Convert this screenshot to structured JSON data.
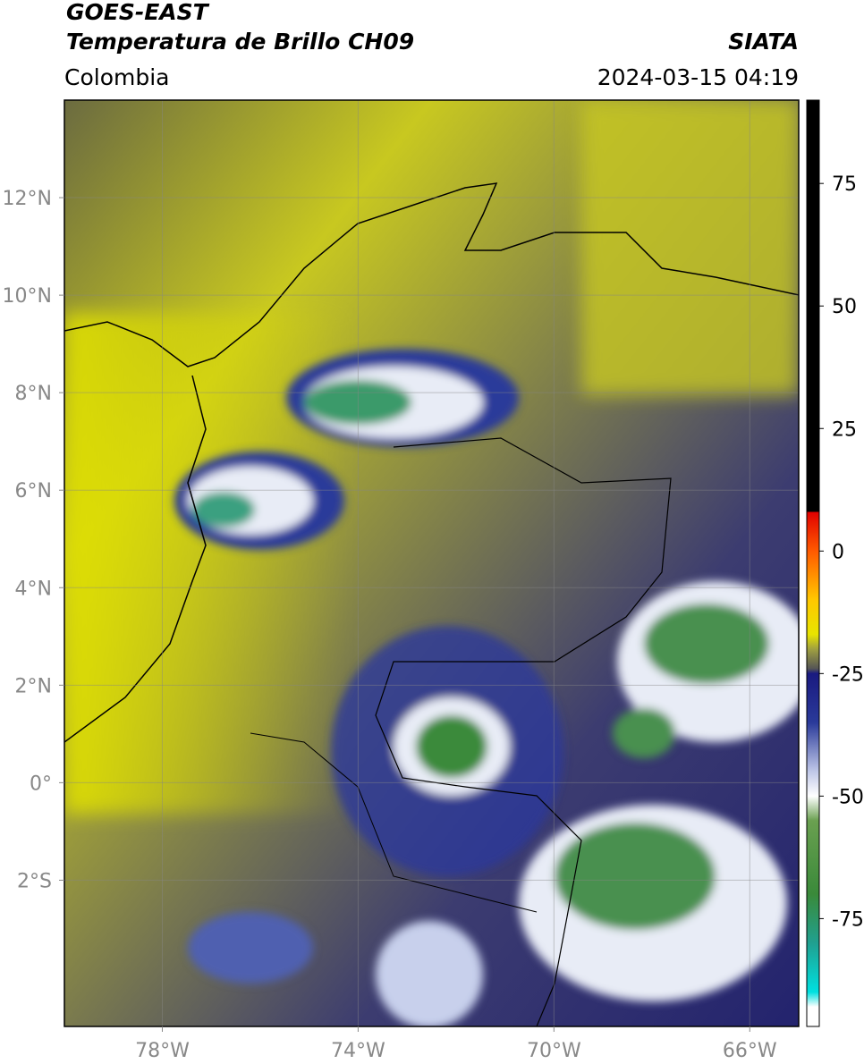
{
  "header": {
    "satellite": "GOES-EAST",
    "product": "Temperatura de Brillo CH09",
    "region": "Colombia",
    "source": "SIATA",
    "datetime": "2024-03-15 04:19"
  },
  "map": {
    "xlim": [
      -80,
      -65
    ],
    "ylim": [
      -5,
      14
    ],
    "xticks": [
      {
        "value": -78,
        "label": "78°W"
      },
      {
        "value": -74,
        "label": "74°W"
      },
      {
        "value": -70,
        "label": "70°W"
      },
      {
        "value": -66,
        "label": "66°W"
      }
    ],
    "yticks": [
      {
        "value": 12,
        "label": "12°N"
      },
      {
        "value": 10,
        "label": "10°N"
      },
      {
        "value": 8,
        "label": "8°N"
      },
      {
        "value": 6,
        "label": "6°N"
      },
      {
        "value": 4,
        "label": "4°N"
      },
      {
        "value": 2,
        "label": "2°N"
      },
      {
        "value": 0,
        "label": "0°"
      },
      {
        "value": -2,
        "label": "2°S"
      }
    ],
    "grid": true
  },
  "colorbar": {
    "lim": [
      -97,
      92
    ],
    "ticks": [
      75,
      50,
      25,
      0,
      -25,
      -50,
      -75
    ],
    "stops": [
      {
        "value": 92,
        "color": "#000000"
      },
      {
        "value": 8,
        "color": "#000000"
      },
      {
        "value": 8,
        "color": "#e00000"
      },
      {
        "value": 0,
        "color": "#ff5a00"
      },
      {
        "value": -10,
        "color": "#ffc800"
      },
      {
        "value": -17,
        "color": "#e8e400"
      },
      {
        "value": -20,
        "color": "#a0a040"
      },
      {
        "value": -24,
        "color": "#555555"
      },
      {
        "value": -25,
        "color": "#1a1a80"
      },
      {
        "value": -35,
        "color": "#2a3a9a"
      },
      {
        "value": -45,
        "color": "#c0c8e8"
      },
      {
        "value": -50,
        "color": "#ffffff"
      },
      {
        "value": -55,
        "color": "#6aa050"
      },
      {
        "value": -70,
        "color": "#3a8a3a"
      },
      {
        "value": -80,
        "color": "#20a090"
      },
      {
        "value": -90,
        "color": "#00e0e0"
      },
      {
        "value": -93,
        "color": "#ffffff"
      },
      {
        "value": -97,
        "color": "#ffffff"
      }
    ]
  }
}
